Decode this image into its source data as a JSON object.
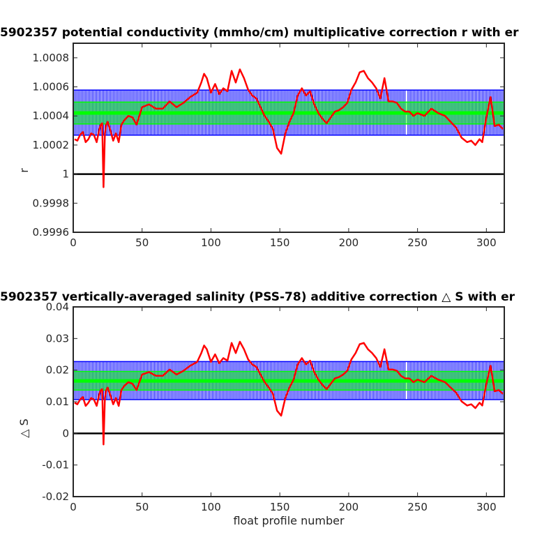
{
  "chart_data": [
    {
      "type": "line",
      "title": "5902357 potential conductivity (mmho/cm) multiplicative correction r with er",
      "xlabel": "",
      "ylabel": "r",
      "xlim": [
        0,
        313
      ],
      "ylim": [
        0.9996,
        1.0009
      ],
      "xticks": [
        0,
        50,
        100,
        150,
        200,
        250,
        300
      ],
      "yticks": [
        0.9996,
        0.9998,
        1,
        1.0002,
        1.0004,
        1.0006,
        1.0008
      ],
      "ytick_labels": [
        "0.9996",
        "0.9998",
        "1",
        "1.0002",
        "1.0004",
        "1.0006",
        "1.0008"
      ],
      "xtick_labels": [
        "0",
        "50",
        "100",
        "150",
        "200",
        "250",
        "300"
      ],
      "reference_line": 1,
      "error_band": {
        "center": 1.00042,
        "inner": [
          1.000345,
          1.000495
        ],
        "outer": [
          1.000268,
          1.000578
        ]
      },
      "colors": {
        "correction": "#ff0000",
        "error_bars": "#0000ff",
        "band": "#00ff00",
        "reference": "#000000"
      },
      "series": [
        {
          "x": [
            1,
            3,
            5,
            7,
            9,
            11,
            13,
            15,
            17,
            19,
            20,
            21,
            22,
            23,
            24,
            25,
            27,
            29,
            31,
            33,
            35,
            37,
            40,
            43,
            46,
            50,
            55,
            60,
            65,
            70,
            75,
            80,
            85,
            90,
            93,
            95,
            97,
            100,
            103,
            106,
            109,
            112,
            115,
            118,
            121,
            124,
            127,
            130,
            133,
            136,
            139,
            142,
            145,
            148,
            151,
            154,
            157,
            160,
            163,
            166,
            169,
            172,
            175,
            178,
            181,
            184,
            187,
            190,
            193,
            196,
            199,
            202,
            205,
            208,
            211,
            214,
            217,
            220,
            223,
            226,
            229,
            232,
            235,
            238,
            241,
            244,
            247,
            250,
            255,
            260,
            265,
            270,
            274,
            278,
            282,
            286,
            289,
            292,
            295,
            297,
            300,
            303,
            306,
            309,
            312
          ],
          "y": [
            1.00024,
            1.00023,
            1.00027,
            1.00029,
            1.00022,
            1.00024,
            1.00028,
            1.00027,
            1.00022,
            1.00031,
            1.00034,
            1.00035,
            0.99991,
            1.00028,
            1.00034,
            1.00036,
            1.0003,
            1.00023,
            1.00028,
            1.00022,
            1.00034,
            1.00037,
            1.0004,
            1.00039,
            1.00034,
            1.00046,
            1.00048,
            1.00045,
            1.00045,
            1.0005,
            1.00046,
            1.00049,
            1.00053,
            1.00056,
            1.00063,
            1.00069,
            1.00066,
            1.00056,
            1.00062,
            1.00055,
            1.00059,
            1.00057,
            1.00071,
            1.00063,
            1.00072,
            1.00066,
            1.00058,
            1.00054,
            1.00052,
            1.00046,
            1.0004,
            1.00036,
            1.00031,
            1.00018,
            1.00014,
            1.00028,
            1.00036,
            1.00042,
            1.00054,
            1.00059,
            1.00054,
            1.00057,
            1.00048,
            1.00042,
            1.00038,
            1.00035,
            1.00039,
            1.00043,
            1.00044,
            1.00046,
            1.00049,
            1.00058,
            1.00063,
            1.0007,
            1.00071,
            1.00066,
            1.00063,
            1.00059,
            1.00052,
            1.00066,
            1.0005,
            1.0005,
            1.00049,
            1.00045,
            1.00043,
            1.00043,
            1.0004,
            1.00042,
            1.0004,
            1.00045,
            1.00042,
            1.0004,
            1.00036,
            1.00032,
            1.00025,
            1.00022,
            1.00023,
            1.0002,
            1.00024,
            1.00022,
            1.00039,
            1.00053,
            1.00033,
            1.00034,
            1.00031
          ]
        }
      ]
    },
    {
      "type": "line",
      "title": "5902357 vertically-averaged salinity (PSS-78) additive correction △ S with er",
      "xlabel": "float profile number",
      "ylabel": "△ S",
      "xlim": [
        0,
        313
      ],
      "ylim": [
        -0.02,
        0.04
      ],
      "xticks": [
        0,
        50,
        100,
        150,
        200,
        250,
        300
      ],
      "yticks": [
        -0.02,
        -0.01,
        0,
        0.01,
        0.02,
        0.03,
        0.04
      ],
      "ytick_labels": [
        "-0.02",
        "-0.01",
        "0",
        "0.01",
        "0.02",
        "0.03",
        "0.04"
      ],
      "xtick_labels": [
        "0",
        "50",
        "100",
        "150",
        "200",
        "250",
        "300"
      ],
      "reference_line": 0,
      "error_band": {
        "center": 0.0166,
        "inner": [
          0.0137,
          0.0196
        ],
        "outer": [
          0.0107,
          0.0227
        ]
      },
      "colors": {
        "correction": "#ff0000",
        "error_bars": "#0000ff",
        "band": "#00ff00",
        "reference": "#000000"
      },
      "series": [
        {
          "x": [
            1,
            3,
            5,
            7,
            9,
            11,
            13,
            15,
            17,
            19,
            20,
            21,
            22,
            23,
            24,
            25,
            27,
            29,
            31,
            33,
            35,
            37,
            40,
            43,
            46,
            50,
            55,
            60,
            65,
            70,
            75,
            80,
            85,
            90,
            93,
            95,
            97,
            100,
            103,
            106,
            109,
            112,
            115,
            118,
            121,
            124,
            127,
            130,
            133,
            136,
            139,
            142,
            145,
            148,
            151,
            154,
            157,
            160,
            163,
            166,
            169,
            172,
            175,
            178,
            181,
            184,
            187,
            190,
            193,
            196,
            199,
            202,
            205,
            208,
            211,
            214,
            217,
            220,
            223,
            226,
            229,
            232,
            235,
            238,
            241,
            244,
            247,
            250,
            255,
            260,
            265,
            270,
            274,
            278,
            282,
            286,
            289,
            292,
            295,
            297,
            300,
            303,
            306,
            309,
            312
          ],
          "y": [
            0.0097,
            0.0092,
            0.0107,
            0.0115,
            0.0087,
            0.0097,
            0.0112,
            0.0107,
            0.0087,
            0.0125,
            0.0137,
            0.014,
            -0.0035,
            0.0112,
            0.0137,
            0.0145,
            0.012,
            0.0092,
            0.0112,
            0.0087,
            0.0137,
            0.015,
            0.0162,
            0.0157,
            0.0137,
            0.0186,
            0.0194,
            0.0182,
            0.0182,
            0.0202,
            0.0186,
            0.0198,
            0.0214,
            0.0226,
            0.0254,
            0.0278,
            0.0266,
            0.0226,
            0.025,
            0.0222,
            0.0238,
            0.023,
            0.0286,
            0.0254,
            0.029,
            0.0266,
            0.0234,
            0.0218,
            0.021,
            0.0186,
            0.0162,
            0.0145,
            0.0125,
            0.0072,
            0.0056,
            0.0112,
            0.0145,
            0.017,
            0.0218,
            0.0238,
            0.0218,
            0.023,
            0.0194,
            0.017,
            0.0153,
            0.014,
            0.0157,
            0.0174,
            0.0178,
            0.0186,
            0.0198,
            0.0234,
            0.0254,
            0.0282,
            0.0286,
            0.0266,
            0.0254,
            0.0238,
            0.021,
            0.0266,
            0.0202,
            0.0202,
            0.0198,
            0.0182,
            0.0174,
            0.0174,
            0.0162,
            0.017,
            0.0162,
            0.0182,
            0.017,
            0.0162,
            0.0145,
            0.0129,
            0.0101,
            0.0088,
            0.0092,
            0.008,
            0.0097,
            0.0088,
            0.0157,
            0.0214,
            0.0133,
            0.0137,
            0.0125
          ]
        }
      ]
    }
  ]
}
